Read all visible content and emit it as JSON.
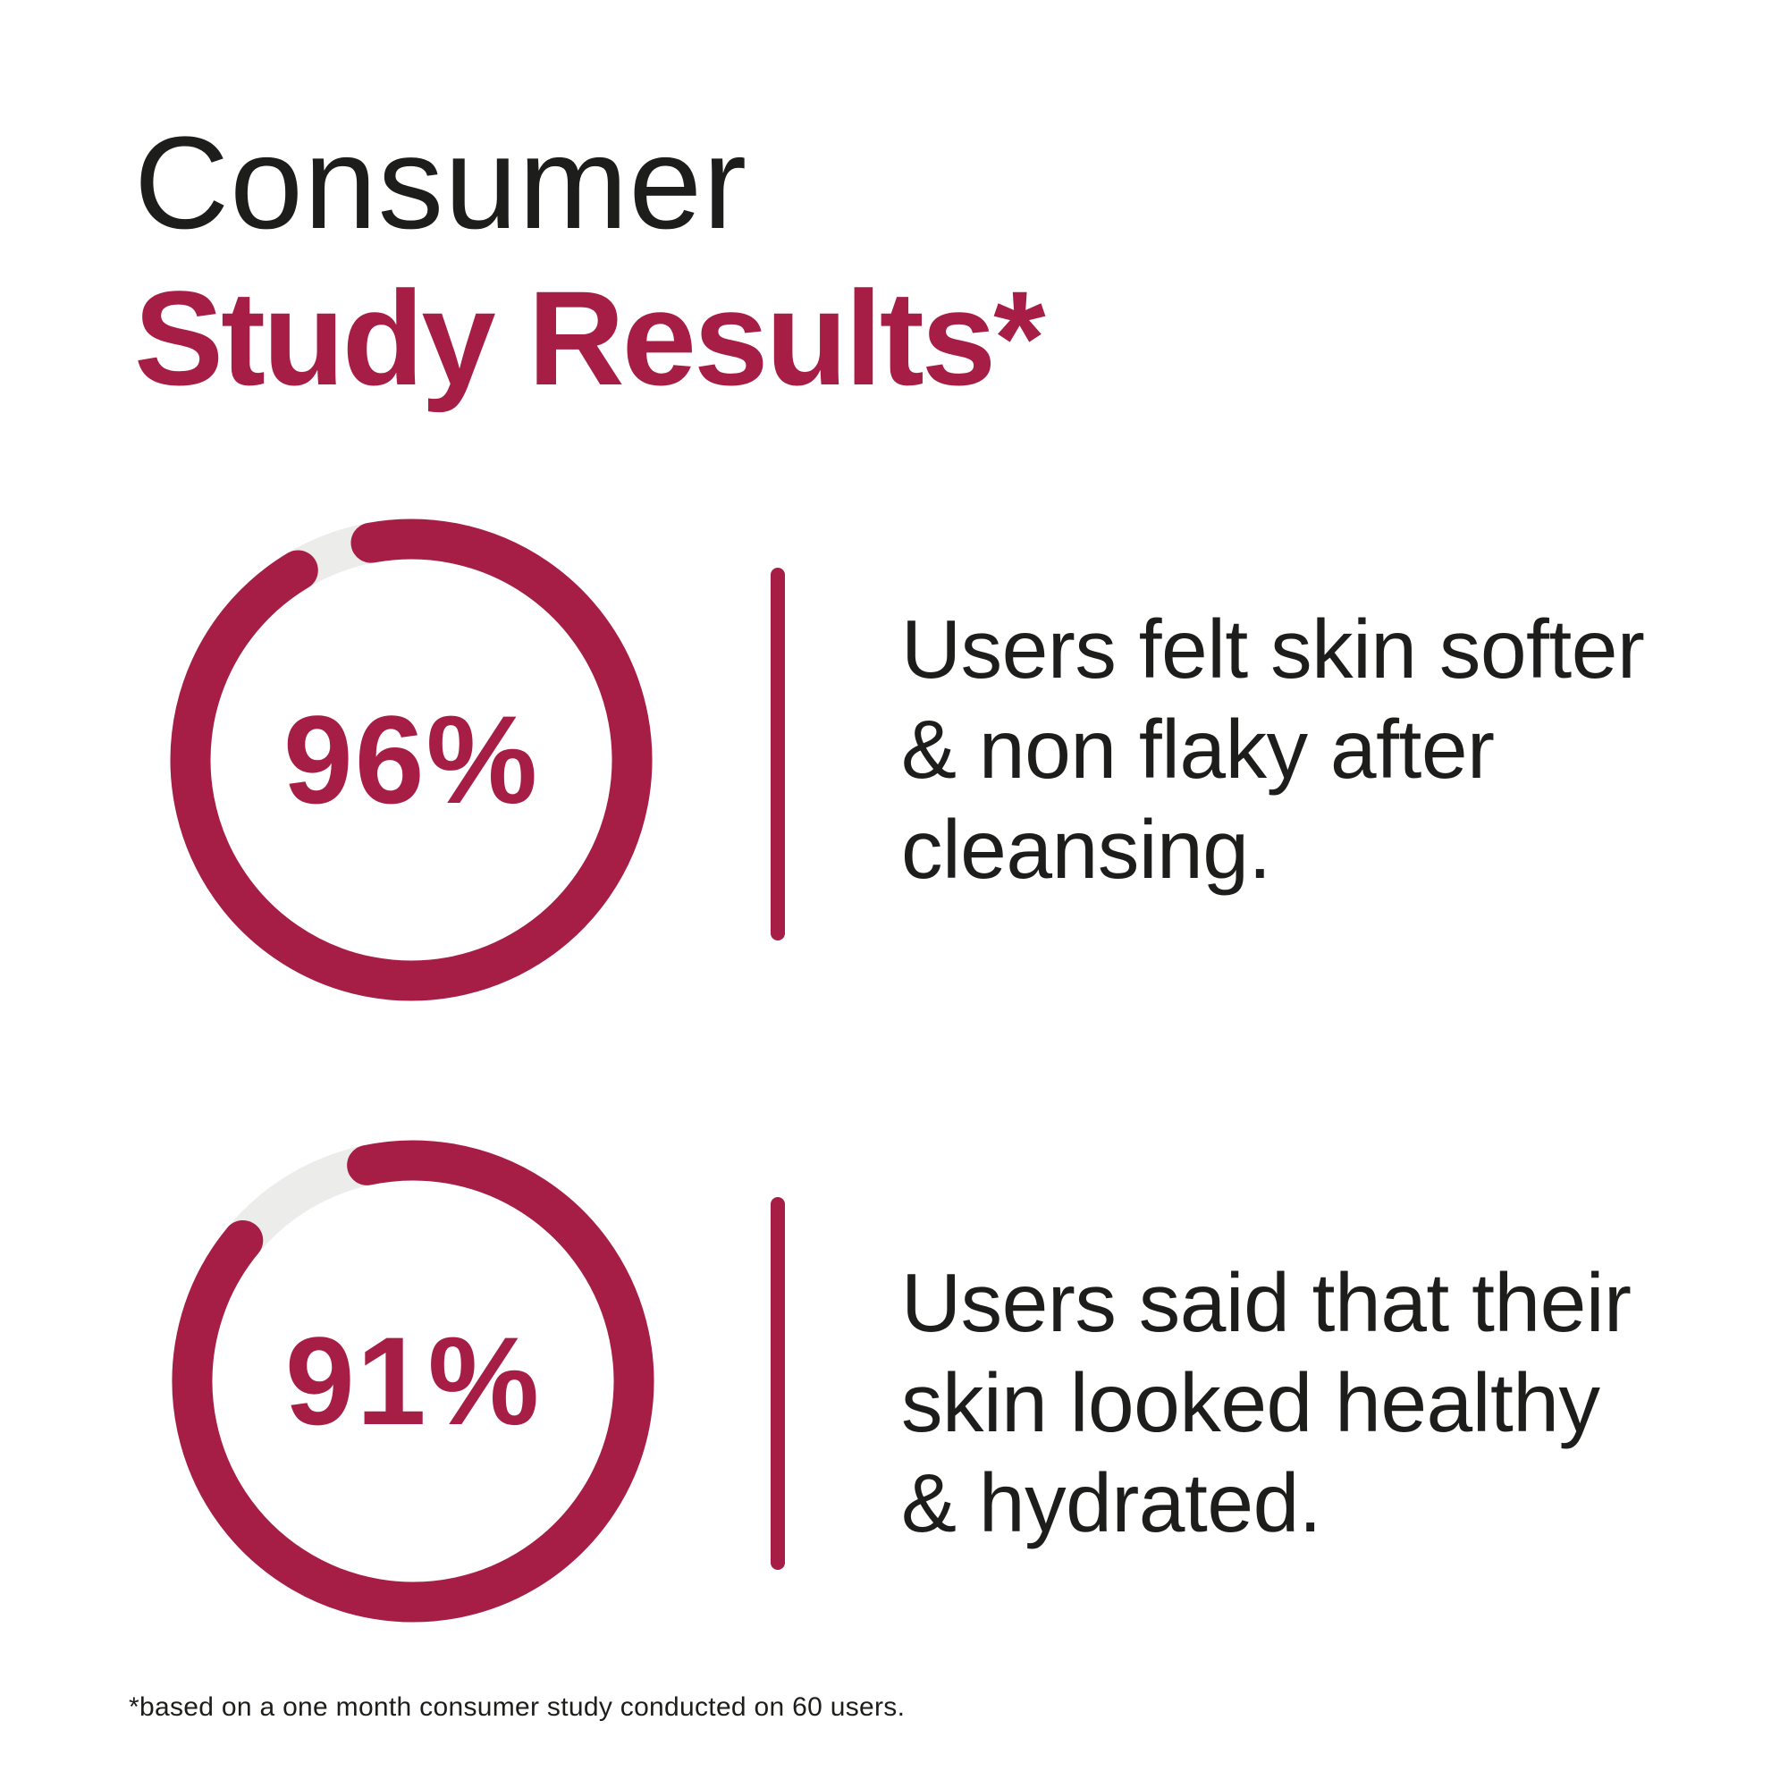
{
  "title": {
    "line1": "Consumer",
    "line2": "Study Results*"
  },
  "colors": {
    "accent": "#A61E46",
    "track": "#ECECEB",
    "ink": "#1D1D1B"
  },
  "chart_data": [
    {
      "type": "donut",
      "value_percent": 96,
      "label": "96%",
      "description": "Users felt skin softer & non flaky after cleansing.",
      "description_lines": [
        "Users felt skin softer",
        "& non flaky after",
        "cleansing."
      ]
    },
    {
      "type": "donut",
      "value_percent": 91,
      "label": "91%",
      "description": "Users said that their skin looked healthy & hydrated.",
      "description_lines": [
        "Users said that their",
        "skin looked healthy",
        "& hydrated."
      ]
    }
  ],
  "footnote": {
    "text": "*based on a one month consumer study conducted on 60 users."
  }
}
